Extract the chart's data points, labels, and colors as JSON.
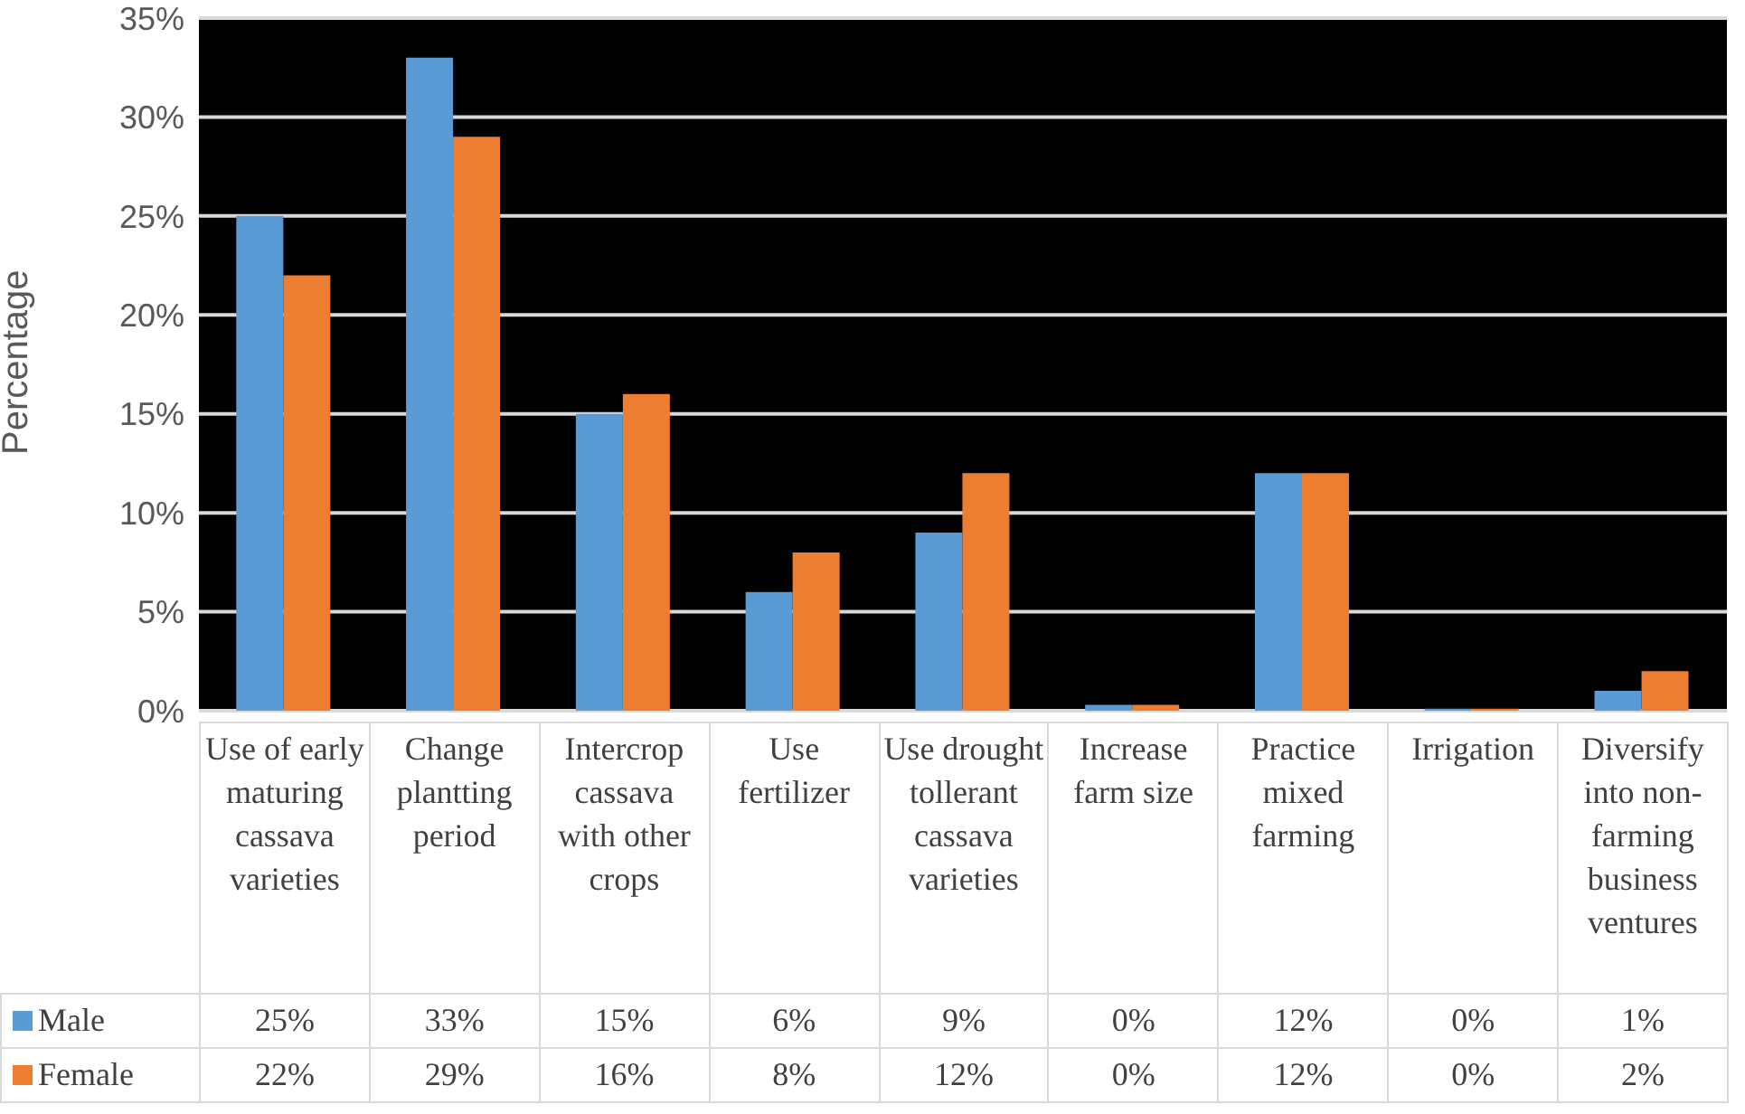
{
  "chart_data": {
    "type": "bar",
    "ylabel": "Percentage",
    "categories": [
      "Use of early maturing cassava varieties",
      "Change plantting period",
      "Intercrop cassava with other crops",
      "Use fertilizer",
      "Use drought tollerant cassava varieties",
      "Increase farm size",
      "Practice mixed farming",
      "Irrigation",
      "Diversify into non-farming business ventures"
    ],
    "series": [
      {
        "name": "Male",
        "color": "#5b9bd5",
        "values": [
          25,
          33,
          15,
          6,
          9,
          0.3,
          12,
          0.1,
          1
        ],
        "value_labels": [
          "25%",
          "33%",
          "15%",
          "6%",
          "9%",
          "0%",
          "12%",
          "0%",
          "1%"
        ]
      },
      {
        "name": "Female",
        "color": "#ed7d31",
        "values": [
          22,
          29,
          16,
          8,
          12,
          0.3,
          12,
          0.1,
          2
        ],
        "value_labels": [
          "22%",
          "29%",
          "16%",
          "8%",
          "12%",
          "0%",
          "12%",
          "0%",
          "2%"
        ]
      }
    ],
    "ylim": [
      0,
      35
    ],
    "yticks": [
      {
        "value": 0,
        "label": "0%"
      },
      {
        "value": 5,
        "label": "5%"
      },
      {
        "value": 10,
        "label": "10%"
      },
      {
        "value": 15,
        "label": "15%"
      },
      {
        "value": 20,
        "label": "20%"
      },
      {
        "value": 25,
        "label": "25%"
      },
      {
        "value": 30,
        "label": "30%"
      },
      {
        "value": 35,
        "label": "35%"
      }
    ],
    "grid": "y",
    "legend": "bottom"
  }
}
